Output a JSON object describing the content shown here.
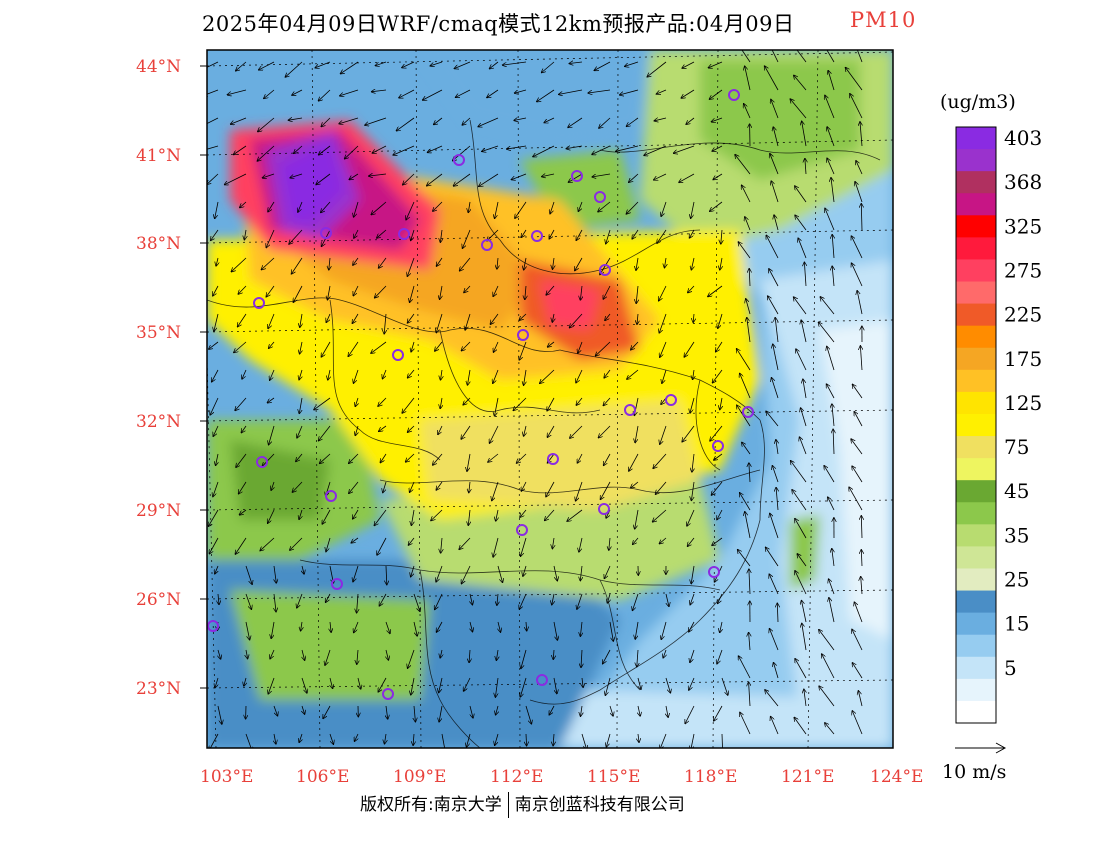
{
  "header": {
    "title": "2025年04月09日WRF/cmaq模式12km预报产品:04月09日",
    "variable": "PM10"
  },
  "legend": {
    "unit": "(ug/m3)",
    "levels": [
      {
        "label": "403",
        "color": "#8a2be2"
      },
      {
        "label": "",
        "color": "#9a32cd"
      },
      {
        "label": "368",
        "color": "#b03060"
      },
      {
        "label": "",
        "color": "#c71585"
      },
      {
        "label": "325",
        "color": "#ff0000"
      },
      {
        "label": "",
        "color": "#ff1a3c"
      },
      {
        "label": "275",
        "color": "#ff4060"
      },
      {
        "label": "",
        "color": "#ff6a6a"
      },
      {
        "label": "225",
        "color": "#f05a28"
      },
      {
        "label": "",
        "color": "#ff8c00"
      },
      {
        "label": "175",
        "color": "#f5a623"
      },
      {
        "label": "",
        "color": "#ffc125"
      },
      {
        "label": "125",
        "color": "#ffe400"
      },
      {
        "label": "",
        "color": "#fff000"
      },
      {
        "label": "75",
        "color": "#f0e060"
      },
      {
        "label": "",
        "color": "#eef560"
      },
      {
        "label": "45",
        "color": "#6aa832"
      },
      {
        "label": "",
        "color": "#8cc84b"
      },
      {
        "label": "35",
        "color": "#b8dc70"
      },
      {
        "label": "",
        "color": "#cfe696"
      },
      {
        "label": "25",
        "color": "#e2ecc0"
      },
      {
        "label": "",
        "color": "#4a8ec6"
      },
      {
        "label": "15",
        "color": "#6aaee0"
      },
      {
        "label": "",
        "color": "#96ccf0"
      },
      {
        "label": "5",
        "color": "#c4e4f8"
      },
      {
        "label": "",
        "color": "#e6f4fc"
      },
      {
        "label": "",
        "color": "#ffffff"
      }
    ]
  },
  "axes": {
    "lat_labels": [
      "44°N",
      "41°N",
      "38°N",
      "35°N",
      "32°N",
      "29°N",
      "26°N",
      "23°N"
    ],
    "lon_labels": [
      "103°E",
      "106°E",
      "109°E",
      "112°E",
      "115°E",
      "118°E",
      "121°E",
      "124°E"
    ]
  },
  "wind_reference": {
    "label": "10 m/s"
  },
  "credit": {
    "left": "版权所有:南京大学",
    "right": "南京创蓝科技有限公司"
  }
}
